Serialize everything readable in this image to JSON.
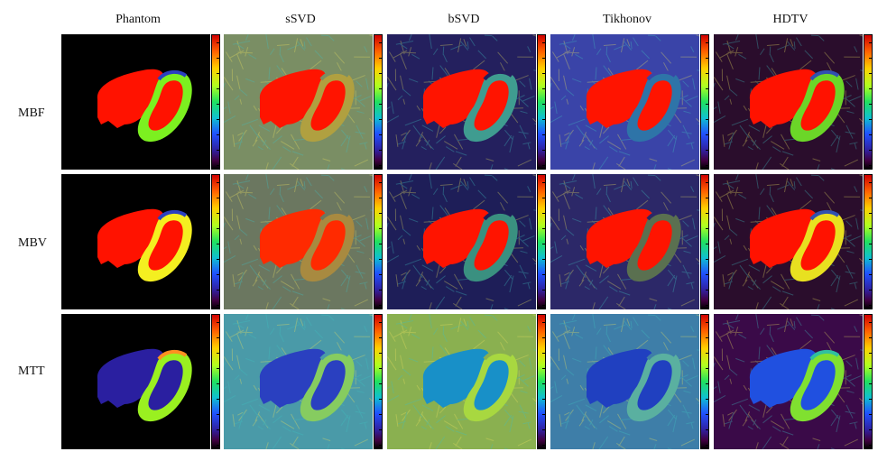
{
  "columns": [
    "Phantom",
    "sSVD",
    "bSVD",
    "Tikhonov",
    "HDTV"
  ],
  "rows": [
    "MBF",
    "MBV",
    "MTT"
  ],
  "colorbar": "jet",
  "colors": {
    "MBF": {
      "Phantom": {
        "bg": "#000000",
        "cavity": "#ff1200",
        "wall": "#7cf020",
        "cap": "#2b40c0"
      },
      "sSVD": {
        "bg": "#7a8e64",
        "cavity": "#ff1400",
        "wall": "#b0a040",
        "cap": "#7a8e64"
      },
      "bSVD": {
        "bg": "#24205e",
        "cavity": "#ff1400",
        "wall": "#3f9c90",
        "cap": "#24205e"
      },
      "Tikhonov": {
        "bg": "#3a44a8",
        "cavity": "#ff1400",
        "wall": "#2e74a8",
        "cap": "#3a44a8"
      },
      "HDTV": {
        "bg": "#2a0d2c",
        "cavity": "#ff1200",
        "wall": "#6bd628",
        "cap": "#3050b0"
      }
    },
    "MBV": {
      "Phantom": {
        "bg": "#000000",
        "cavity": "#ff1200",
        "wall": "#f4ef20",
        "cap": "#2b40c0"
      },
      "sSVD": {
        "bg": "#6b7760",
        "cavity": "#ff2a00",
        "wall": "#a88a40",
        "cap": "#6b7760"
      },
      "bSVD": {
        "bg": "#1e1e58",
        "cavity": "#ff1400",
        "wall": "#3a9080",
        "cap": "#1e1e58"
      },
      "Tikhonov": {
        "bg": "#2c2868",
        "cavity": "#ff1400",
        "wall": "#5a7050",
        "cap": "#2c2868"
      },
      "HDTV": {
        "bg": "#2a0d2c",
        "cavity": "#ff1200",
        "wall": "#e8e020",
        "cap": "#3050b0"
      }
    },
    "MTT": {
      "Phantom": {
        "bg": "#000000",
        "cavity": "#2a1fa0",
        "wall": "#9af020",
        "cap": "#ff9020"
      },
      "sSVD": {
        "bg": "#4a9aa8",
        "cavity": "#2a40c0",
        "wall": "#86cc60",
        "cap": "#4a9aa8"
      },
      "bSVD": {
        "bg": "#8ab050",
        "cavity": "#1890c8",
        "wall": "#a8d840",
        "cap": "#8ab050"
      },
      "Tikhonov": {
        "bg": "#3e7ea8",
        "cavity": "#2040c0",
        "wall": "#5ab0a0",
        "cap": "#3e7ea8"
      },
      "HDTV": {
        "bg": "#3a0a48",
        "cavity": "#2050e0",
        "wall": "#80e030",
        "cap": "#30c0a0"
      }
    }
  }
}
